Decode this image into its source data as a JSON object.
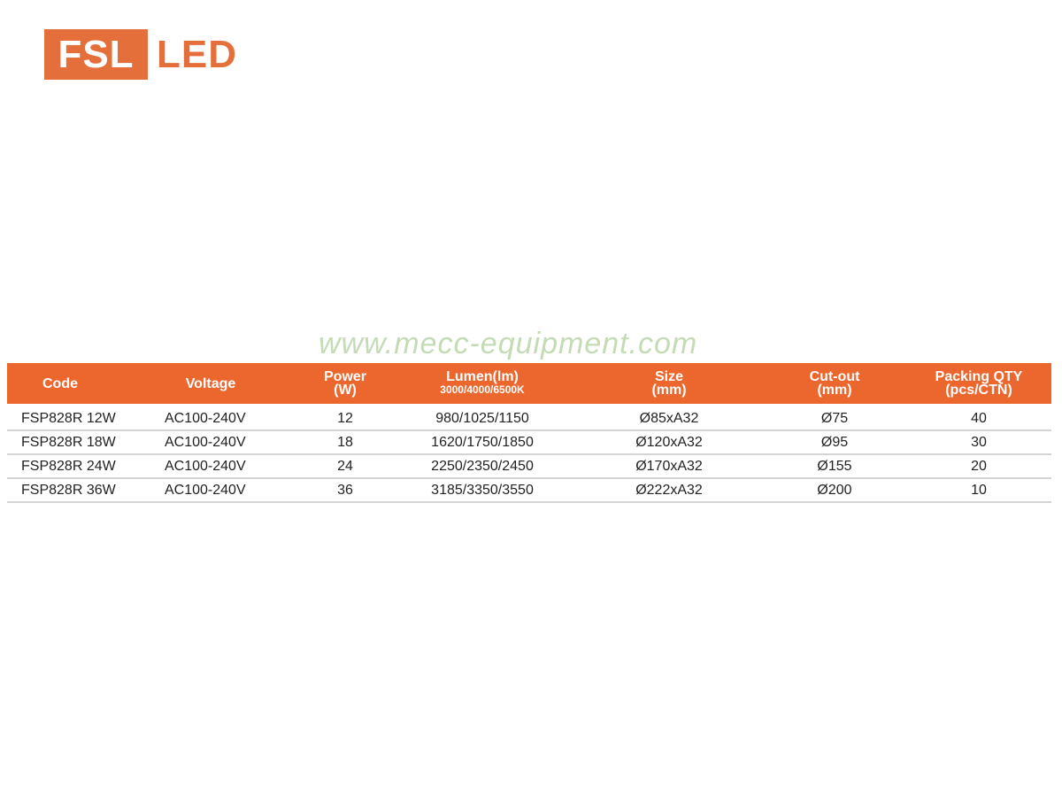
{
  "logo": {
    "box_text": "FSL",
    "text": "LED",
    "color": "#E56F3A"
  },
  "watermark": "www.mecc-equipment.com",
  "table": {
    "header_color": "#EC672E",
    "columns": [
      {
        "label": "Code",
        "sub": ""
      },
      {
        "label": "Voltage",
        "sub": ""
      },
      {
        "label": "Power",
        "sub": "(W)"
      },
      {
        "label": "Lumen(lm)",
        "sub": "3000/4000/6500K"
      },
      {
        "label": "Size",
        "sub": "(mm)"
      },
      {
        "label": "Cut-out",
        "sub": "(mm)"
      },
      {
        "label": "Packing QTY",
        "sub": "(pcs/CTN)"
      }
    ],
    "rows": [
      [
        "FSP828R 12W",
        "AC100-240V",
        "12",
        "980/1025/1150",
        "Ø85xA32",
        "Ø75",
        "40"
      ],
      [
        "FSP828R 18W",
        "AC100-240V",
        "18",
        "1620/1750/1850",
        "Ø120xA32",
        "Ø95",
        "30"
      ],
      [
        "FSP828R 24W",
        "AC100-240V",
        "24",
        "2250/2350/2450",
        "Ø170xA32",
        "Ø155",
        "20"
      ],
      [
        "FSP828R 36W",
        "AC100-240V",
        "36",
        "3185/3350/3550",
        "Ø222xA32",
        "Ø200",
        "10"
      ]
    ]
  }
}
